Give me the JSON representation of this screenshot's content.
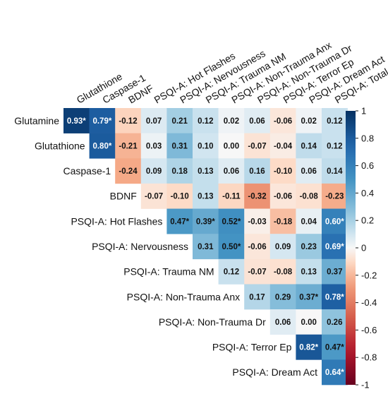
{
  "chart_data": {
    "type": "heatmap",
    "title": "",
    "columns": [
      "Glutathione",
      "Caspase-1",
      "BDNF",
      "PSQI-A: Hot Flashes",
      "PSQI-A: Nervousness",
      "PSQI-A: Trauma NM",
      "PSQI-A: Non-Trauma Anx",
      "PSQI-A: Non-Trauma Dr",
      "PSQI-A: Terror Ep",
      "PSQI-A: Dream Act",
      "PSQI-A: Total"
    ],
    "rows": [
      {
        "label": "Glutamine",
        "cells": [
          {
            "v": 0.93,
            "t": "0.93*"
          },
          {
            "v": 0.79,
            "t": "0.79*"
          },
          {
            "v": -0.12,
            "t": "-0.12"
          },
          {
            "v": 0.07,
            "t": "0.07"
          },
          {
            "v": 0.21,
            "t": "0.21"
          },
          {
            "v": 0.12,
            "t": "0.12"
          },
          {
            "v": 0.02,
            "t": "0.02"
          },
          {
            "v": 0.06,
            "t": "0.06"
          },
          {
            "v": -0.06,
            "t": "-0.06"
          },
          {
            "v": 0.02,
            "t": "0.02"
          },
          {
            "v": 0.12,
            "t": "0.12"
          }
        ]
      },
      {
        "label": "Glutathione",
        "cells": [
          {
            "v": 0.8,
            "t": "0.80*"
          },
          {
            "v": -0.21,
            "t": "-0.21"
          },
          {
            "v": 0.03,
            "t": "0.03"
          },
          {
            "v": 0.31,
            "t": "0.31"
          },
          {
            "v": 0.1,
            "t": "0.10"
          },
          {
            "v": 0.0,
            "t": "0.00"
          },
          {
            "v": -0.07,
            "t": "-0.07"
          },
          {
            "v": -0.04,
            "t": "-0.04"
          },
          {
            "v": 0.14,
            "t": "0.14"
          },
          {
            "v": 0.12,
            "t": "0.12"
          }
        ]
      },
      {
        "label": "Caspase-1",
        "cells": [
          {
            "v": -0.24,
            "t": "-0.24"
          },
          {
            "v": 0.09,
            "t": "0.09"
          },
          {
            "v": 0.18,
            "t": "0.18"
          },
          {
            "v": 0.13,
            "t": "0.13"
          },
          {
            "v": 0.06,
            "t": "0.06"
          },
          {
            "v": 0.16,
            "t": "0.16"
          },
          {
            "v": -0.1,
            "t": "-0.10"
          },
          {
            "v": 0.06,
            "t": "0.06"
          },
          {
            "v": 0.14,
            "t": "0.14"
          }
        ]
      },
      {
        "label": "BDNF",
        "cells": [
          {
            "v": -0.07,
            "t": "-0.07"
          },
          {
            "v": -0.1,
            "t": "-0.10"
          },
          {
            "v": 0.13,
            "t": "0.13"
          },
          {
            "v": -0.11,
            "t": "-0.11"
          },
          {
            "v": -0.32,
            "t": "-0.32"
          },
          {
            "v": -0.06,
            "t": "-0.06"
          },
          {
            "v": -0.08,
            "t": "-0.08"
          },
          {
            "v": -0.23,
            "t": "-0.23"
          }
        ]
      },
      {
        "label": "PSQI-A: Hot Flashes",
        "cells": [
          {
            "v": 0.47,
            "t": "0.47*"
          },
          {
            "v": 0.39,
            "t": "0.39*"
          },
          {
            "v": 0.52,
            "t": "0.52*"
          },
          {
            "v": -0.03,
            "t": "-0.03"
          },
          {
            "v": -0.18,
            "t": "-0.18"
          },
          {
            "v": 0.04,
            "t": "0.04"
          },
          {
            "v": 0.6,
            "t": "0.60*"
          }
        ]
      },
      {
        "label": "PSQI-A: Nervousness",
        "cells": [
          {
            "v": 0.31,
            "t": "0.31"
          },
          {
            "v": 0.5,
            "t": "0.50*"
          },
          {
            "v": -0.06,
            "t": "-0.06"
          },
          {
            "v": 0.09,
            "t": "0.09"
          },
          {
            "v": 0.23,
            "t": "0.23"
          },
          {
            "v": 0.69,
            "t": "0.69*"
          }
        ]
      },
      {
        "label": "PSQI-A: Trauma NM",
        "cells": [
          {
            "v": 0.12,
            "t": "0.12"
          },
          {
            "v": -0.07,
            "t": "-0.07"
          },
          {
            "v": -0.08,
            "t": "-0.08"
          },
          {
            "v": 0.13,
            "t": "0.13"
          },
          {
            "v": 0.37,
            "t": "0.37"
          }
        ]
      },
      {
        "label": "PSQI-A: Non-Trauma Anx",
        "cells": [
          {
            "v": 0.17,
            "t": "0.17"
          },
          {
            "v": 0.29,
            "t": "0.29"
          },
          {
            "v": 0.37,
            "t": "0.37*"
          },
          {
            "v": 0.78,
            "t": "0.78*"
          }
        ]
      },
      {
        "label": "PSQI-A: Non-Trauma Dr",
        "cells": [
          {
            "v": 0.06,
            "t": "0.06"
          },
          {
            "v": 0.0,
            "t": "0.00"
          },
          {
            "v": 0.26,
            "t": "0.26"
          }
        ]
      },
      {
        "label": "PSQI-A: Terror Ep",
        "cells": [
          {
            "v": 0.82,
            "t": "0.82*"
          },
          {
            "v": 0.47,
            "t": "0.47*"
          }
        ]
      },
      {
        "label": "PSQI-A: Dream Act",
        "cells": [
          {
            "v": 0.64,
            "t": "0.64*"
          }
        ]
      }
    ],
    "colorbar": {
      "range": [
        -1,
        1
      ],
      "ticks": [
        "1",
        "0.8",
        "0.6",
        "0.4",
        "0.2",
        "0",
        "-0.2",
        "-0.4",
        "-0.6",
        "-0.8",
        "-1"
      ]
    },
    "colors": {
      "negative_end": "#67001f",
      "neutral": "#f7f7f7",
      "positive_end": "#053061"
    }
  }
}
